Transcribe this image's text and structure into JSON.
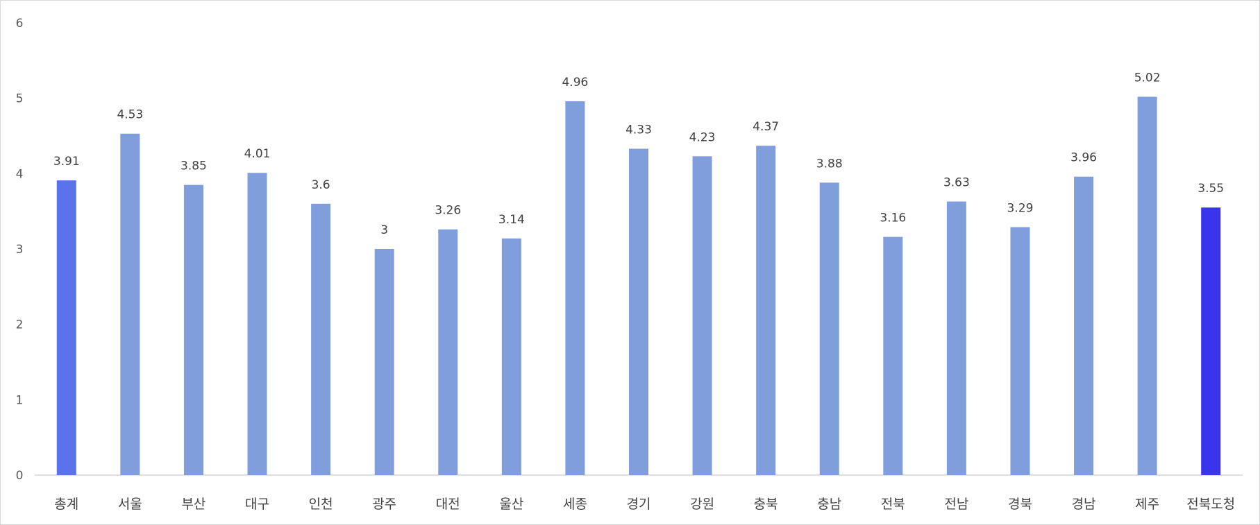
{
  "chart_data": {
    "type": "bar",
    "title": "",
    "xlabel": "",
    "ylabel": "",
    "ylim": [
      0,
      6
    ],
    "yticks": [
      0,
      1,
      2,
      3,
      4,
      5,
      6
    ],
    "grid": false,
    "legend": "none",
    "categories": [
      "총계",
      "서울",
      "부산",
      "대구",
      "인천",
      "광주",
      "대전",
      "울산",
      "세종",
      "경기",
      "강원",
      "충북",
      "충남",
      "전북",
      "전남",
      "경북",
      "경남",
      "제주",
      "전북도청"
    ],
    "values": [
      3.91,
      4.53,
      3.85,
      4.01,
      3.6,
      3,
      3.26,
      3.14,
      4.96,
      4.33,
      4.23,
      4.37,
      3.88,
      3.16,
      3.63,
      3.29,
      3.96,
      5.02,
      3.55
    ],
    "colors": {
      "default": "#7f9edb",
      "highlight_total": "#5b73ea",
      "highlight_target": "#3a34ec",
      "axis": "#bfbfbf"
    },
    "highlights": {
      "총계": "highlight_total",
      "전북도청": "highlight_target"
    }
  }
}
